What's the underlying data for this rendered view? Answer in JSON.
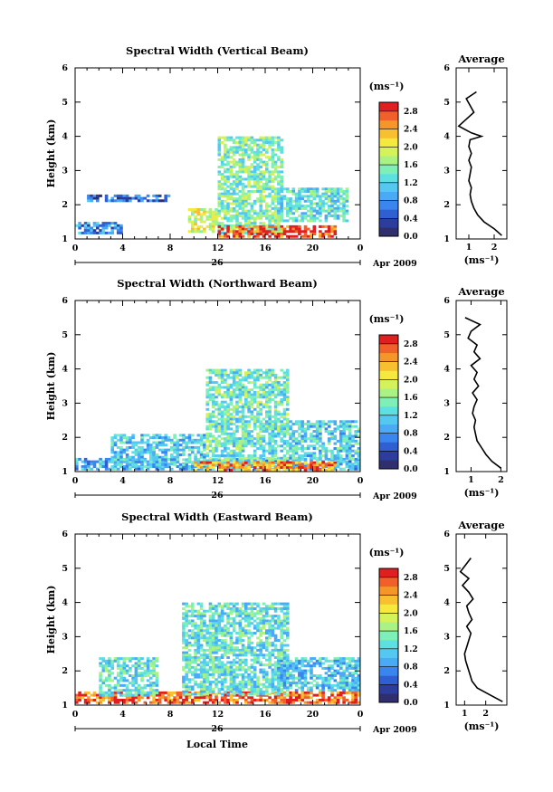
{
  "figure": {
    "xlabel": "Local Time",
    "date_label": "Apr 2009",
    "day_label": "26",
    "ylabel": "Height (km)",
    "unit_label": "(ms⁻¹)",
    "avg_title": "Average"
  },
  "colors": {
    "scale": [
      "#2f2f6f",
      "#2c3d9e",
      "#2f5fd0",
      "#3a86ee",
      "#4aaaf5",
      "#55c8f2",
      "#5fe0e0",
      "#7fefb8",
      "#aaf283",
      "#d6f25a",
      "#f5e83e",
      "#f8c030",
      "#f5962a",
      "#f0602a",
      "#e02020"
    ]
  },
  "chart_data": [
    {
      "type": "heatmap",
      "title": "Spectral Width (Vertical Beam)",
      "xlabel": "Local Time",
      "ylabel": "Height (km)",
      "xlim": [
        0,
        24
      ],
      "ylim": [
        1,
        6
      ],
      "x_ticks": [
        "0",
        "4",
        "8",
        "12",
        "16",
        "20",
        "0"
      ],
      "y_ticks": [
        "1",
        "2",
        "3",
        "4",
        "5",
        "6"
      ],
      "colorbar": {
        "unit": "(ms⁻¹)",
        "min": 0.0,
        "max": 3.0,
        "ticks": [
          "0.0",
          "0.4",
          "0.8",
          "1.2",
          "1.6",
          "2.0",
          "2.4",
          "2.8"
        ]
      },
      "coverage": [
        {
          "x": [
            0,
            4
          ],
          "y": [
            1.2,
            1.5
          ],
          "value": 0.8
        },
        {
          "x": [
            1,
            8
          ],
          "y": [
            2.1,
            2.3
          ],
          "value": 0.6
        },
        {
          "x": [
            9.5,
            12
          ],
          "y": [
            1.2,
            1.9
          ],
          "value": 1.9
        },
        {
          "x": [
            12,
            17.5
          ],
          "y": [
            1.2,
            4.0
          ],
          "value": 1.5
        },
        {
          "x": [
            12,
            22
          ],
          "y": [
            1.1,
            1.4
          ],
          "value": 2.8
        },
        {
          "x": [
            17,
            23
          ],
          "y": [
            1.5,
            2.5
          ],
          "value": 1.3
        }
      ],
      "average_profile": {
        "title": "Average",
        "xlabel": "(ms⁻¹)",
        "xlim": [
          0.5,
          2.5
        ],
        "ylim": [
          1,
          6
        ],
        "x_ticks": [
          "1",
          "2"
        ],
        "y_ticks": [
          "1",
          "2",
          "3",
          "4",
          "5",
          "6"
        ],
        "height": [
          1.1,
          1.3,
          1.5,
          1.7,
          1.9,
          2.1,
          2.3,
          2.5,
          2.7,
          2.9,
          3.1,
          3.3,
          3.5,
          3.7,
          3.9,
          4.0,
          4.1,
          4.3,
          4.5,
          4.7,
          5.1,
          5.3
        ],
        "width": [
          2.3,
          2.0,
          1.6,
          1.35,
          1.2,
          1.1,
          1.05,
          1.1,
          1.0,
          1.05,
          1.1,
          1.0,
          1.1,
          1.0,
          1.05,
          1.5,
          1.1,
          0.6,
          0.9,
          1.2,
          0.9,
          1.3
        ]
      }
    },
    {
      "type": "heatmap",
      "title": "Spectral Width (Northward Beam)",
      "xlabel": "Local Time",
      "ylabel": "Height (km)",
      "xlim": [
        0,
        24
      ],
      "ylim": [
        1,
        6
      ],
      "x_ticks": [
        "0",
        "4",
        "8",
        "12",
        "16",
        "20",
        "0"
      ],
      "y_ticks": [
        "1",
        "2",
        "3",
        "4",
        "5",
        "6"
      ],
      "colorbar": {
        "unit": "(ms⁻¹)",
        "min": 0.0,
        "max": 3.0,
        "ticks": [
          "0.0",
          "0.4",
          "0.8",
          "1.2",
          "1.6",
          "2.0",
          "2.4",
          "2.8"
        ]
      },
      "coverage": [
        {
          "x": [
            0,
            24
          ],
          "y": [
            1.05,
            1.4
          ],
          "value": 1.0
        },
        {
          "x": [
            3,
            11
          ],
          "y": [
            1.2,
            2.1
          ],
          "value": 1.1
        },
        {
          "x": [
            11,
            18
          ],
          "y": [
            1.2,
            4.0
          ],
          "value": 1.4
        },
        {
          "x": [
            10,
            22
          ],
          "y": [
            1.05,
            1.3
          ],
          "value": 2.5
        },
        {
          "x": [
            18,
            24
          ],
          "y": [
            1.4,
            2.5
          ],
          "value": 1.2
        }
      ],
      "average_profile": {
        "title": "Average",
        "xlabel": "(ms⁻¹)",
        "xlim": [
          0.5,
          2.2
        ],
        "ylim": [
          1,
          6
        ],
        "x_ticks": [
          "1",
          "2"
        ],
        "y_ticks": [
          "1",
          "2",
          "3",
          "4",
          "5",
          "6"
        ],
        "height": [
          1.1,
          1.3,
          1.5,
          1.7,
          1.9,
          2.1,
          2.3,
          2.5,
          2.7,
          2.9,
          3.1,
          3.3,
          3.5,
          3.7,
          3.9,
          4.1,
          4.3,
          4.5,
          4.7,
          4.9,
          5.1,
          5.3,
          5.5
        ],
        "width": [
          2.0,
          1.7,
          1.5,
          1.35,
          1.2,
          1.15,
          1.1,
          1.15,
          1.05,
          1.1,
          1.2,
          1.05,
          1.25,
          1.1,
          1.2,
          1.0,
          1.3,
          1.1,
          1.2,
          0.9,
          1.0,
          1.3,
          0.8
        ]
      }
    },
    {
      "type": "heatmap",
      "title": "Spectral Width (Eastward Beam)",
      "xlabel": "Local Time",
      "ylabel": "Height (km)",
      "xlim": [
        0,
        24
      ],
      "ylim": [
        1,
        6
      ],
      "x_ticks": [
        "0",
        "4",
        "8",
        "12",
        "16",
        "20",
        "0"
      ],
      "y_ticks": [
        "1",
        "2",
        "3",
        "4",
        "5",
        "6"
      ],
      "colorbar": {
        "unit": "(ms⁻¹)",
        "min": 0.0,
        "max": 3.0,
        "ticks": [
          "0.0",
          "0.4",
          "0.8",
          "1.2",
          "1.6",
          "2.0",
          "2.4",
          "2.8"
        ]
      },
      "coverage": [
        {
          "x": [
            0,
            24
          ],
          "y": [
            1.1,
            1.4
          ],
          "value": 2.7
        },
        {
          "x": [
            2,
            7
          ],
          "y": [
            1.3,
            2.4
          ],
          "value": 1.3
        },
        {
          "x": [
            9,
            18
          ],
          "y": [
            1.3,
            4.0
          ],
          "value": 1.3
        },
        {
          "x": [
            17,
            24
          ],
          "y": [
            1.4,
            2.4
          ],
          "value": 1.1
        }
      ],
      "average_profile": {
        "title": "Average",
        "xlabel": "(ms⁻¹)",
        "xlim": [
          0.6,
          3.0
        ],
        "ylim": [
          1,
          6
        ],
        "x_ticks": [
          "1",
          "2"
        ],
        "y_ticks": [
          "1",
          "2",
          "3",
          "4",
          "5",
          "6"
        ],
        "height": [
          1.1,
          1.3,
          1.5,
          1.7,
          1.9,
          2.1,
          2.3,
          2.5,
          2.7,
          2.9,
          3.1,
          3.3,
          3.5,
          3.7,
          3.9,
          4.1,
          4.3,
          4.5,
          4.7,
          4.9,
          5.3
        ],
        "width": [
          2.8,
          2.2,
          1.6,
          1.35,
          1.25,
          1.15,
          1.05,
          1.0,
          1.1,
          1.2,
          1.3,
          1.1,
          1.35,
          1.2,
          1.1,
          1.4,
          1.2,
          0.9,
          1.2,
          0.8,
          1.3
        ]
      }
    }
  ]
}
